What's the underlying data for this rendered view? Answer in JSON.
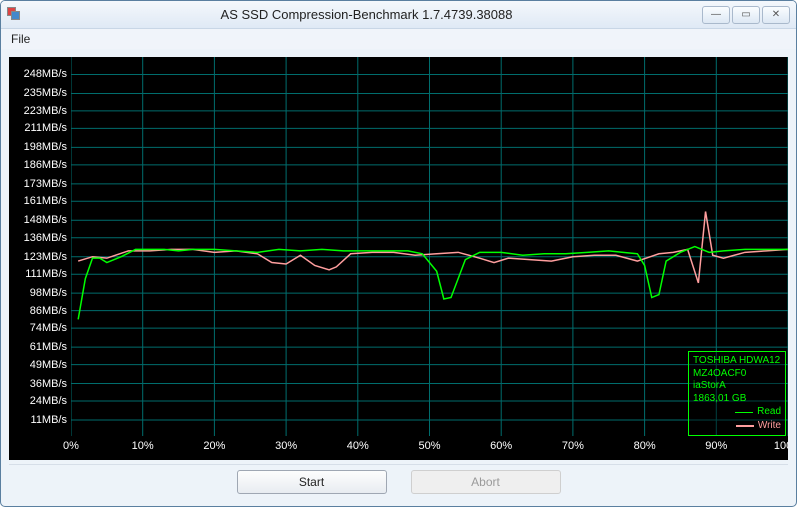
{
  "window": {
    "title": "AS SSD Compression-Benchmark 1.7.4739.38088",
    "min_glyph": "—",
    "max_glyph": "▭",
    "close_glyph": "✕"
  },
  "menu": {
    "file": "File"
  },
  "chart": {
    "type": "line",
    "background": "#000000",
    "grid_color": "#006d6d",
    "text_color": "#ffffff",
    "y_unit": "MB/s",
    "y_values": [
      11,
      24,
      36,
      49,
      61,
      74,
      86,
      98,
      111,
      123,
      136,
      148,
      161,
      173,
      186,
      198,
      211,
      223,
      235,
      248
    ],
    "x_values": [
      0,
      10,
      20,
      30,
      40,
      50,
      60,
      70,
      80,
      90,
      100
    ],
    "x_suffix": "%",
    "ylim": [
      0,
      260
    ],
    "xlim": [
      0,
      100
    ],
    "series": {
      "read": {
        "color": "#00ff00",
        "width": 1.5,
        "points": [
          [
            1,
            80
          ],
          [
            2,
            108
          ],
          [
            3,
            122
          ],
          [
            4,
            122
          ],
          [
            5,
            119
          ],
          [
            7,
            123
          ],
          [
            9,
            128
          ],
          [
            11,
            128
          ],
          [
            13,
            128
          ],
          [
            15,
            127
          ],
          [
            17,
            128
          ],
          [
            20,
            128
          ],
          [
            23,
            127
          ],
          [
            26,
            126
          ],
          [
            29,
            128
          ],
          [
            32,
            127
          ],
          [
            35,
            128
          ],
          [
            38,
            127
          ],
          [
            41,
            127
          ],
          [
            44,
            127
          ],
          [
            47,
            127
          ],
          [
            49,
            125
          ],
          [
            51,
            113
          ],
          [
            52,
            94
          ],
          [
            53,
            95
          ],
          [
            55,
            121
          ],
          [
            57,
            126
          ],
          [
            60,
            126
          ],
          [
            63,
            124
          ],
          [
            66,
            125
          ],
          [
            69,
            125
          ],
          [
            72,
            126
          ],
          [
            75,
            127
          ],
          [
            77,
            126
          ],
          [
            79,
            125
          ],
          [
            80,
            117
          ],
          [
            81,
            95
          ],
          [
            82,
            97
          ],
          [
            83,
            120
          ],
          [
            85,
            126
          ],
          [
            87,
            130
          ],
          [
            89,
            126
          ],
          [
            91,
            127
          ],
          [
            94,
            128
          ],
          [
            97,
            128
          ],
          [
            100,
            128
          ]
        ]
      },
      "write": {
        "color": "#ff9e9e",
        "width": 1.5,
        "points": [
          [
            1,
            120
          ],
          [
            3,
            123
          ],
          [
            5,
            122
          ],
          [
            8,
            127
          ],
          [
            11,
            127
          ],
          [
            14,
            128
          ],
          [
            17,
            128
          ],
          [
            20,
            126
          ],
          [
            23,
            127
          ],
          [
            26,
            125
          ],
          [
            28,
            119
          ],
          [
            30,
            118
          ],
          [
            32,
            124
          ],
          [
            34,
            117
          ],
          [
            36,
            114
          ],
          [
            37,
            116
          ],
          [
            39,
            125
          ],
          [
            42,
            126
          ],
          [
            45,
            126
          ],
          [
            48,
            124
          ],
          [
            51,
            125
          ],
          [
            54,
            126
          ],
          [
            57,
            122
          ],
          [
            59,
            119
          ],
          [
            61,
            122
          ],
          [
            64,
            121
          ],
          [
            67,
            120
          ],
          [
            70,
            123
          ],
          [
            73,
            124
          ],
          [
            76,
            124
          ],
          [
            79,
            120
          ],
          [
            82,
            125
          ],
          [
            84,
            126
          ],
          [
            86,
            128
          ],
          [
            87.5,
            105
          ],
          [
            88.5,
            154
          ],
          [
            89.5,
            124
          ],
          [
            91,
            122
          ],
          [
            94,
            126
          ],
          [
            97,
            127
          ],
          [
            100,
            128
          ]
        ]
      }
    }
  },
  "legend": {
    "border_color": "#00ff00",
    "info_color": "#00ff00",
    "lines": [
      "TOSHIBA HDWA12",
      "MZ4OACF0",
      "iaStorA",
      "1863,01 GB"
    ],
    "read_label": "Read",
    "write_label": "Write"
  },
  "buttons": {
    "start": "Start",
    "abort": "Abort"
  }
}
